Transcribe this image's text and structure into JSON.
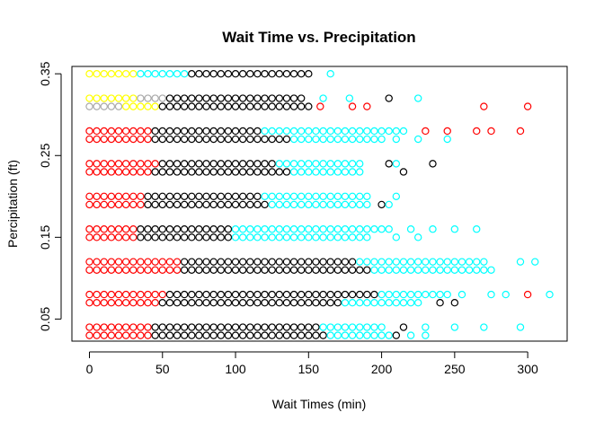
{
  "chart_data": {
    "type": "scatter",
    "title": "Wait Time vs. Precipitation",
    "xlabel": "Wait Times (min)",
    "ylabel": "Percipitation (ft)",
    "xlim": [
      -12,
      327
    ],
    "ylim": [
      0.023,
      0.359
    ],
    "xticks": [
      0,
      50,
      100,
      150,
      200,
      250,
      300
    ],
    "yticks": [
      0.05,
      0.15,
      0.25,
      0.35
    ],
    "grid": false,
    "legend": "none",
    "marker": "open-circle",
    "rows": [
      {
        "y": 0.35,
        "x_max": 150,
        "color": "#000000",
        "lead": [
          {
            "color": "#ffff00",
            "until": 32
          },
          {
            "color": "#00ffff",
            "until": 65
          }
        ],
        "extra": [
          {
            "x": 165,
            "color": "#00ffff"
          }
        ]
      },
      {
        "y": 0.32,
        "x_max": 145,
        "color": "#000000",
        "lead": [
          {
            "color": "#ffff00",
            "until": 30
          },
          {
            "color": "#aaaaaa",
            "until": 52
          }
        ],
        "extra": [
          {
            "x": 160,
            "color": "#00ffff"
          },
          {
            "x": 178,
            "color": "#00ffff"
          },
          {
            "x": 205,
            "color": "#000000"
          },
          {
            "x": 225,
            "color": "#00ffff"
          }
        ]
      },
      {
        "y": 0.31,
        "x_max": 150,
        "color": "#000000",
        "lead": [
          {
            "color": "#aaaaaa",
            "until": 20
          },
          {
            "color": "#ffff00",
            "until": 45
          }
        ],
        "extra": [
          {
            "x": 158,
            "color": "#ff0000"
          },
          {
            "x": 180,
            "color": "#ff0000"
          },
          {
            "x": 190,
            "color": "#ff0000"
          },
          {
            "x": 270,
            "color": "#ff0000"
          },
          {
            "x": 300,
            "color": "#ff0000"
          }
        ]
      },
      {
        "y": 0.28,
        "x_max": 215,
        "color": "#000000",
        "lead": [
          {
            "color": "#ff0000",
            "until": 40
          }
        ],
        "tail": {
          "color": "#00ffff",
          "from": 120
        },
        "extra": [
          {
            "x": 230,
            "color": "#ff0000"
          },
          {
            "x": 245,
            "color": "#ff0000"
          },
          {
            "x": 265,
            "color": "#ff0000"
          },
          {
            "x": 275,
            "color": "#ff0000"
          },
          {
            "x": 295,
            "color": "#ff0000"
          }
        ]
      },
      {
        "y": 0.27,
        "x_max": 200,
        "color": "#000000",
        "lead": [
          {
            "color": "#ff0000",
            "until": 40
          }
        ],
        "tail": {
          "color": "#00ffff",
          "from": 140
        },
        "extra": [
          {
            "x": 210,
            "color": "#00ffff"
          },
          {
            "x": 225,
            "color": "#00ffff"
          },
          {
            "x": 245,
            "color": "#00ffff"
          }
        ]
      },
      {
        "y": 0.24,
        "x_max": 185,
        "color": "#000000",
        "lead": [
          {
            "color": "#ff0000",
            "until": 45
          }
        ],
        "tail": {
          "color": "#00ffff",
          "from": 130
        },
        "extra": [
          {
            "x": 205,
            "color": "#000000"
          },
          {
            "x": 210,
            "color": "#00ffff"
          },
          {
            "x": 235,
            "color": "#000000"
          }
        ]
      },
      {
        "y": 0.23,
        "x_max": 185,
        "color": "#000000",
        "lead": [
          {
            "color": "#ff0000",
            "until": 40
          }
        ],
        "tail": {
          "color": "#00ffff",
          "from": 140
        },
        "extra": [
          {
            "x": 215,
            "color": "#000000"
          }
        ]
      },
      {
        "y": 0.2,
        "x_max": 190,
        "color": "#000000",
        "lead": [
          {
            "color": "#ff0000",
            "until": 35
          }
        ],
        "tail": {
          "color": "#00ffff",
          "from": 120
        },
        "extra": [
          {
            "x": 210,
            "color": "#00ffff"
          }
        ]
      },
      {
        "y": 0.19,
        "x_max": 190,
        "color": "#000000",
        "lead": [
          {
            "color": "#ff0000",
            "until": 35
          }
        ],
        "tail": {
          "color": "#00ffff",
          "from": 125
        },
        "extra": [
          {
            "x": 200,
            "color": "#000000"
          },
          {
            "x": 205,
            "color": "#00ffff"
          }
        ]
      },
      {
        "y": 0.16,
        "x_max": 205,
        "color": "#000000",
        "lead": [
          {
            "color": "#ff0000",
            "until": 30
          }
        ],
        "tail": {
          "color": "#00ffff",
          "from": 100
        },
        "extra": [
          {
            "x": 220,
            "color": "#00ffff"
          },
          {
            "x": 235,
            "color": "#00ffff"
          },
          {
            "x": 250,
            "color": "#00ffff"
          },
          {
            "x": 265,
            "color": "#00ffff"
          }
        ]
      },
      {
        "y": 0.15,
        "x_max": 190,
        "color": "#000000",
        "lead": [
          {
            "color": "#ff0000",
            "until": 30
          }
        ],
        "tail": {
          "color": "#00ffff",
          "from": 100
        },
        "extra": [
          {
            "x": 210,
            "color": "#00ffff"
          },
          {
            "x": 225,
            "color": "#00ffff"
          }
        ]
      },
      {
        "y": 0.12,
        "x_max": 270,
        "color": "#000000",
        "lead": [
          {
            "color": "#ff0000",
            "until": 60
          }
        ],
        "tail": {
          "color": "#00ffff",
          "from": 185
        },
        "extra": [
          {
            "x": 295,
            "color": "#00ffff"
          },
          {
            "x": 305,
            "color": "#00ffff"
          }
        ]
      },
      {
        "y": 0.11,
        "x_max": 275,
        "color": "#000000",
        "lead": [
          {
            "color": "#ff0000",
            "until": 60
          }
        ],
        "tail": {
          "color": "#00ffff",
          "from": 195
        },
        "extra": []
      },
      {
        "y": 0.08,
        "x_max": 245,
        "color": "#000000",
        "lead": [
          {
            "color": "#ff0000",
            "until": 50
          }
        ],
        "tail": {
          "color": "#00ffff",
          "from": 200
        },
        "extra": [
          {
            "x": 255,
            "color": "#00ffff"
          },
          {
            "x": 275,
            "color": "#00ffff"
          },
          {
            "x": 285,
            "color": "#00ffff"
          },
          {
            "x": 300,
            "color": "#ff0000"
          },
          {
            "x": 315,
            "color": "#00ffff"
          }
        ]
      },
      {
        "y": 0.07,
        "x_max": 225,
        "color": "#000000",
        "lead": [
          {
            "color": "#ff0000",
            "until": 45
          }
        ],
        "tail": {
          "color": "#00ffff",
          "from": 175
        },
        "extra": [
          {
            "x": 240,
            "color": "#000000"
          },
          {
            "x": 250,
            "color": "#000000"
          }
        ]
      },
      {
        "y": 0.04,
        "x_max": 200,
        "color": "#000000",
        "lead": [
          {
            "color": "#ff0000",
            "until": 40
          }
        ],
        "tail": {
          "color": "#00ffff",
          "from": 160
        },
        "extra": [
          {
            "x": 215,
            "color": "#000000"
          },
          {
            "x": 230,
            "color": "#00ffff"
          },
          {
            "x": 250,
            "color": "#00ffff"
          },
          {
            "x": 270,
            "color": "#00ffff"
          },
          {
            "x": 295,
            "color": "#00ffff"
          }
        ]
      },
      {
        "y": 0.03,
        "x_max": 205,
        "color": "#000000",
        "lead": [
          {
            "color": "#ff0000",
            "until": 40
          }
        ],
        "tail": {
          "color": "#00ffff",
          "from": 165
        },
        "extra": [
          {
            "x": 210,
            "color": "#000000"
          },
          {
            "x": 220,
            "color": "#00ffff"
          },
          {
            "x": 230,
            "color": "#00ffff"
          }
        ]
      }
    ],
    "spacing": 5
  }
}
